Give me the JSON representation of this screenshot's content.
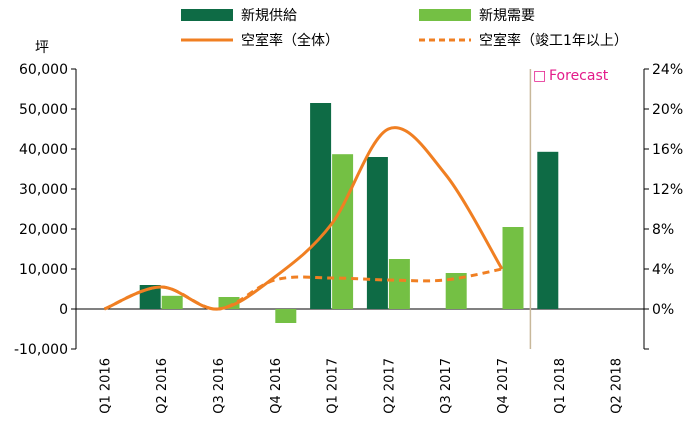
{
  "chart_data": {
    "type": "bar",
    "categories": [
      "Q1 2016",
      "Q2 2016",
      "Q3 2016",
      "Q4 2016",
      "Q1 2017",
      "Q2 2017",
      "Q3 2017",
      "Q4 2017",
      "Q1 2018",
      "Q2 2018"
    ],
    "ylabel": "坪",
    "ylim": [
      -10000,
      60000
    ],
    "y_ticks": [
      "-10,000",
      "0",
      "10,000",
      "20,000",
      "30,000",
      "40,000",
      "50,000",
      "60,000"
    ],
    "y2lim": [
      -0.04,
      0.24
    ],
    "y2_ticks": [
      "0%",
      "4%",
      "8%",
      "12%",
      "16%",
      "20%",
      "24%"
    ],
    "series": [
      {
        "name": "新規供給",
        "type": "bar",
        "color": "#0e6b45",
        "values": [
          0,
          6000,
          0,
          0,
          51500,
          38000,
          0,
          0,
          39300,
          0
        ]
      },
      {
        "name": "新規需要",
        "type": "bar",
        "color": "#74c044",
        "values": [
          0,
          3300,
          3000,
          -3500,
          38700,
          12500,
          9000,
          20500,
          null,
          null
        ]
      },
      {
        "name": "空室率（全体）",
        "type": "line",
        "color": "#f07f22",
        "style": "solid",
        "values": [
          0.0,
          0.022,
          0.0,
          0.032,
          0.085,
          0.18,
          0.135,
          0.04,
          null,
          null
        ]
      },
      {
        "name": "空室率（竣工1年以上）",
        "type": "line",
        "color": "#f07f22",
        "style": "dashed",
        "values": [
          0.0,
          0.022,
          0.0,
          0.029,
          0.031,
          0.029,
          0.029,
          0.04,
          null,
          null
        ]
      }
    ],
    "annotation": "Forecast",
    "forecast_marker_color": "#e31b8a",
    "forecast_line_color": "#c8b89a",
    "grid": false,
    "legend": "top"
  }
}
